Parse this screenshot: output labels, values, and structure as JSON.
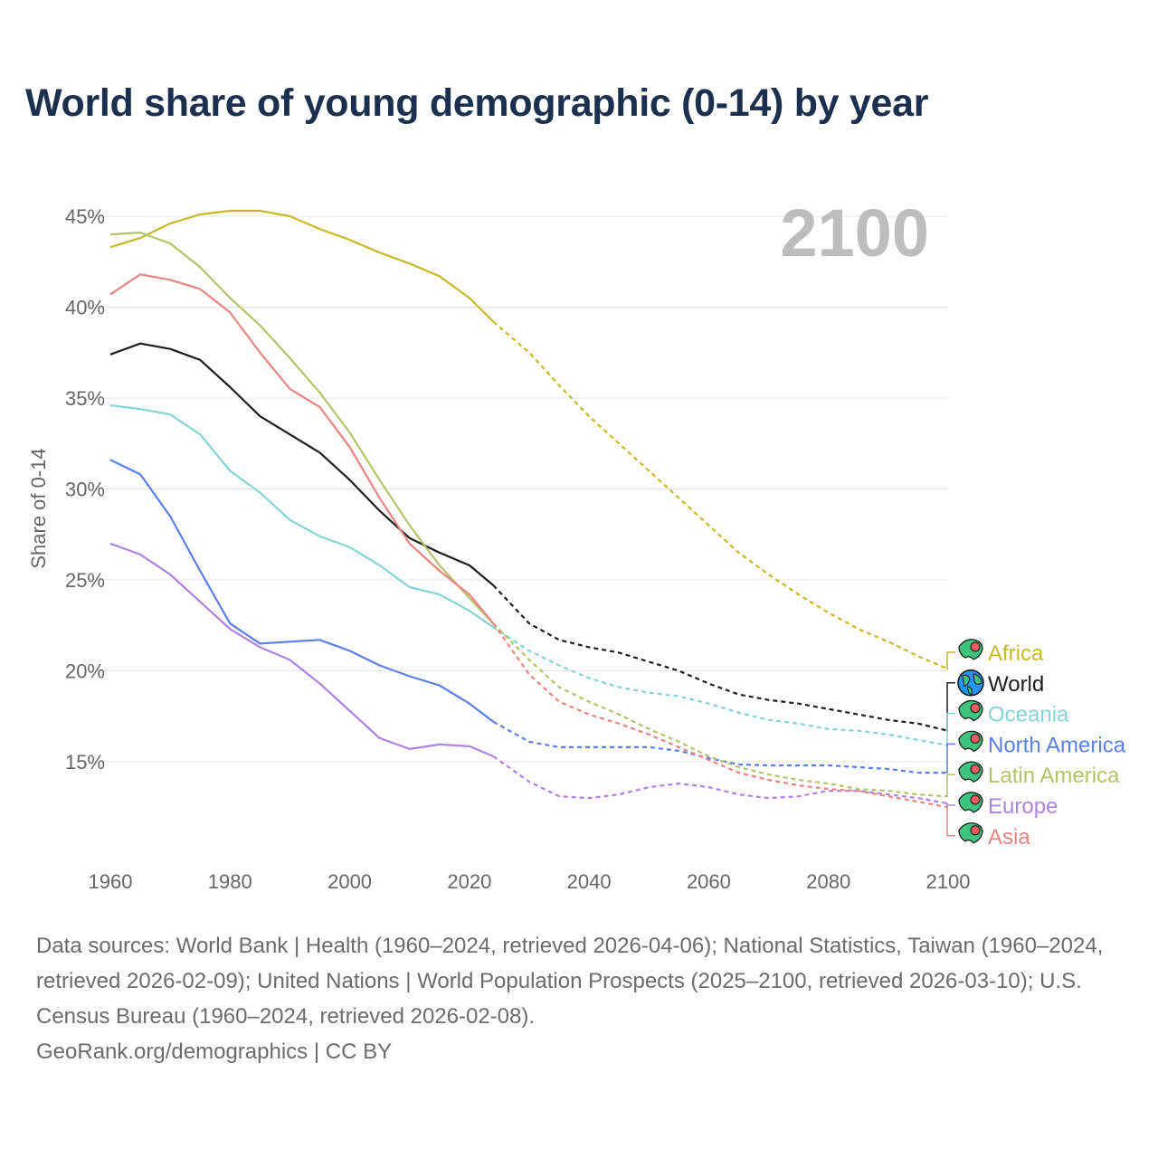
{
  "title": "World share of young demographic (0-14) by year",
  "footer": {
    "sources": "Data sources: World Bank | Health (1960–2024, retrieved 2026-04-06); National Statistics, Taiwan (1960–2024, retrieved 2026-02-09); United Nations | World Population Prospects (2025–2100, retrieved 2026-03-10); U.S. Census Bureau (1960–2024, retrieved 2026-02-08).",
    "credit": "GeoRank.org/demographics | CC BY"
  },
  "chart_data": {
    "type": "line",
    "title": "World share of young demographic (0-14) by year",
    "current_year_label": "2100",
    "xlabel": "",
    "ylabel": "Share of 0-14",
    "xlim": [
      1960,
      2100
    ],
    "ylim": [
      10.5,
      47
    ],
    "x_ticks": [
      1960,
      1980,
      2000,
      2020,
      2040,
      2060,
      2080,
      2100
    ],
    "y_ticks": [
      15,
      20,
      25,
      30,
      35,
      40,
      45
    ],
    "y_tick_labels": [
      "15%",
      "20%",
      "25%",
      "30%",
      "35%",
      "40%",
      "45%"
    ],
    "grid": true,
    "projection_start": 2024,
    "legend_placement": "right",
    "x": [
      1960,
      1965,
      1970,
      1975,
      1980,
      1985,
      1990,
      1995,
      2000,
      2005,
      2010,
      2015,
      2020,
      2024,
      2030,
      2035,
      2040,
      2045,
      2050,
      2055,
      2060,
      2065,
      2070,
      2075,
      2080,
      2085,
      2090,
      2095,
      2100
    ],
    "series": [
      {
        "name": "Africa",
        "color": "#c9b826",
        "icon": "africa-map-icon",
        "values": [
          43.3,
          43.8,
          44.6,
          45.1,
          45.3,
          45.3,
          45.0,
          44.3,
          43.7,
          43.0,
          42.4,
          41.7,
          40.5,
          39.2,
          37.5,
          35.7,
          34.0,
          32.5,
          31.0,
          29.5,
          28.0,
          26.5,
          25.3,
          24.2,
          23.2,
          22.3,
          21.6,
          20.8,
          20.1
        ]
      },
      {
        "name": "World",
        "color": "#1e1e1e",
        "icon": "globe-icon",
        "values": [
          37.4,
          38.0,
          37.7,
          37.1,
          35.6,
          34.0,
          33.0,
          32.0,
          30.5,
          28.8,
          27.3,
          26.5,
          25.8,
          24.7,
          22.6,
          21.7,
          21.3,
          21.0,
          20.5,
          20.0,
          19.3,
          18.7,
          18.4,
          18.2,
          17.9,
          17.6,
          17.3,
          17.1,
          16.7
        ]
      },
      {
        "name": "Oceania",
        "color": "#85d3d6",
        "icon": "oceania-map-icon",
        "values": [
          34.6,
          34.4,
          34.1,
          33.0,
          31.0,
          29.8,
          28.3,
          27.4,
          26.8,
          25.8,
          24.6,
          24.2,
          23.3,
          22.4,
          21.1,
          20.3,
          19.6,
          19.1,
          18.8,
          18.6,
          18.2,
          17.7,
          17.3,
          17.1,
          16.8,
          16.7,
          16.5,
          16.2,
          15.9
        ]
      },
      {
        "name": "North America",
        "color": "#5b7fe8",
        "icon": "north-america-map-icon",
        "values": [
          31.6,
          30.8,
          28.5,
          25.5,
          22.6,
          21.5,
          21.6,
          21.7,
          21.1,
          20.3,
          19.7,
          19.2,
          18.2,
          17.2,
          16.1,
          15.8,
          15.8,
          15.8,
          15.8,
          15.6,
          15.2,
          14.85,
          14.8,
          14.8,
          14.8,
          14.7,
          14.6,
          14.4,
          14.4
        ]
      },
      {
        "name": "Latin America",
        "color": "#b2c46a",
        "icon": "latin-america-map-icon",
        "values": [
          44.0,
          44.1,
          43.5,
          42.2,
          40.5,
          39.0,
          37.2,
          35.3,
          33.1,
          30.5,
          28.0,
          25.8,
          24.0,
          22.6,
          20.6,
          19.1,
          18.3,
          17.6,
          16.8,
          16.1,
          15.3,
          14.7,
          14.3,
          14.0,
          13.8,
          13.5,
          13.4,
          13.2,
          13.1
        ]
      },
      {
        "name": "Europe",
        "color": "#ad82e0",
        "icon": "europe-map-icon",
        "values": [
          27.0,
          26.4,
          25.3,
          23.8,
          22.3,
          21.3,
          20.6,
          19.3,
          17.8,
          16.3,
          15.7,
          15.95,
          15.85,
          15.3,
          13.9,
          13.1,
          13.0,
          13.2,
          13.6,
          13.8,
          13.6,
          13.2,
          13.0,
          13.1,
          13.4,
          13.4,
          13.2,
          13.0,
          12.7
        ]
      },
      {
        "name": "Asia",
        "color": "#ea8481",
        "icon": "asia-map-icon",
        "values": [
          40.7,
          41.8,
          41.5,
          41.0,
          39.7,
          37.5,
          35.5,
          34.5,
          32.3,
          29.5,
          27.0,
          25.5,
          24.2,
          22.6,
          19.8,
          18.3,
          17.6,
          17.1,
          16.5,
          15.8,
          15.1,
          14.4,
          14.0,
          13.7,
          13.5,
          13.4,
          13.1,
          12.8,
          12.5
        ]
      }
    ]
  }
}
